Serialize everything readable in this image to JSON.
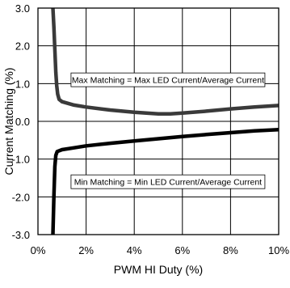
{
  "chart_data": {
    "type": "line",
    "xlabel": "PWM HI Duty (%)",
    "ylabel": "Current Matching (%)",
    "xlim": [
      0,
      10
    ],
    "ylim": [
      -3,
      3
    ],
    "x_ticks": [
      0,
      2,
      4,
      6,
      8,
      10
    ],
    "x_tick_labels": [
      "0%",
      "2%",
      "4%",
      "6%",
      "8%",
      "10%"
    ],
    "y_ticks": [
      3,
      2,
      1,
      0,
      -1,
      -2,
      -3
    ],
    "y_tick_labels": [
      "3.0",
      "2.0",
      "1.0",
      "0.0",
      "-1.0",
      "-2.0",
      "-3.0"
    ],
    "grid": true,
    "series": [
      {
        "color": "#3a3a3a",
        "x": [
          0.62,
          0.66,
          0.7,
          0.74,
          0.78,
          0.82,
          0.88,
          1.0,
          1.5,
          2.0,
          3.0,
          4.0,
          5.0,
          5.5,
          6.0,
          7.0,
          8.0,
          9.0,
          10.0
        ],
        "y": [
          3.0,
          2.5,
          1.9,
          1.3,
          0.95,
          0.72,
          0.58,
          0.52,
          0.43,
          0.38,
          0.3,
          0.24,
          0.2,
          0.2,
          0.22,
          0.27,
          0.33,
          0.38,
          0.42
        ]
      },
      {
        "color": "#000000",
        "x": [
          0.62,
          0.64,
          0.66,
          0.68,
          0.7,
          0.74,
          0.8,
          1.0,
          1.5,
          2.0,
          3.0,
          4.0,
          5.0,
          6.0,
          7.0,
          8.0,
          9.0,
          10.0
        ],
        "y": [
          -3.0,
          -2.5,
          -2.0,
          -1.6,
          -1.2,
          -0.9,
          -0.8,
          -0.75,
          -0.7,
          -0.65,
          -0.58,
          -0.52,
          -0.46,
          -0.4,
          -0.35,
          -0.3,
          -0.25,
          -0.22
        ]
      }
    ],
    "annotations": [
      {
        "text": "Max Matching = Max LED Current/Average Current",
        "x": 5.4,
        "y": 1.1
      },
      {
        "text": "Min Matching = Min LED Current/Average Current",
        "x": 5.4,
        "y": -1.6
      }
    ]
  }
}
